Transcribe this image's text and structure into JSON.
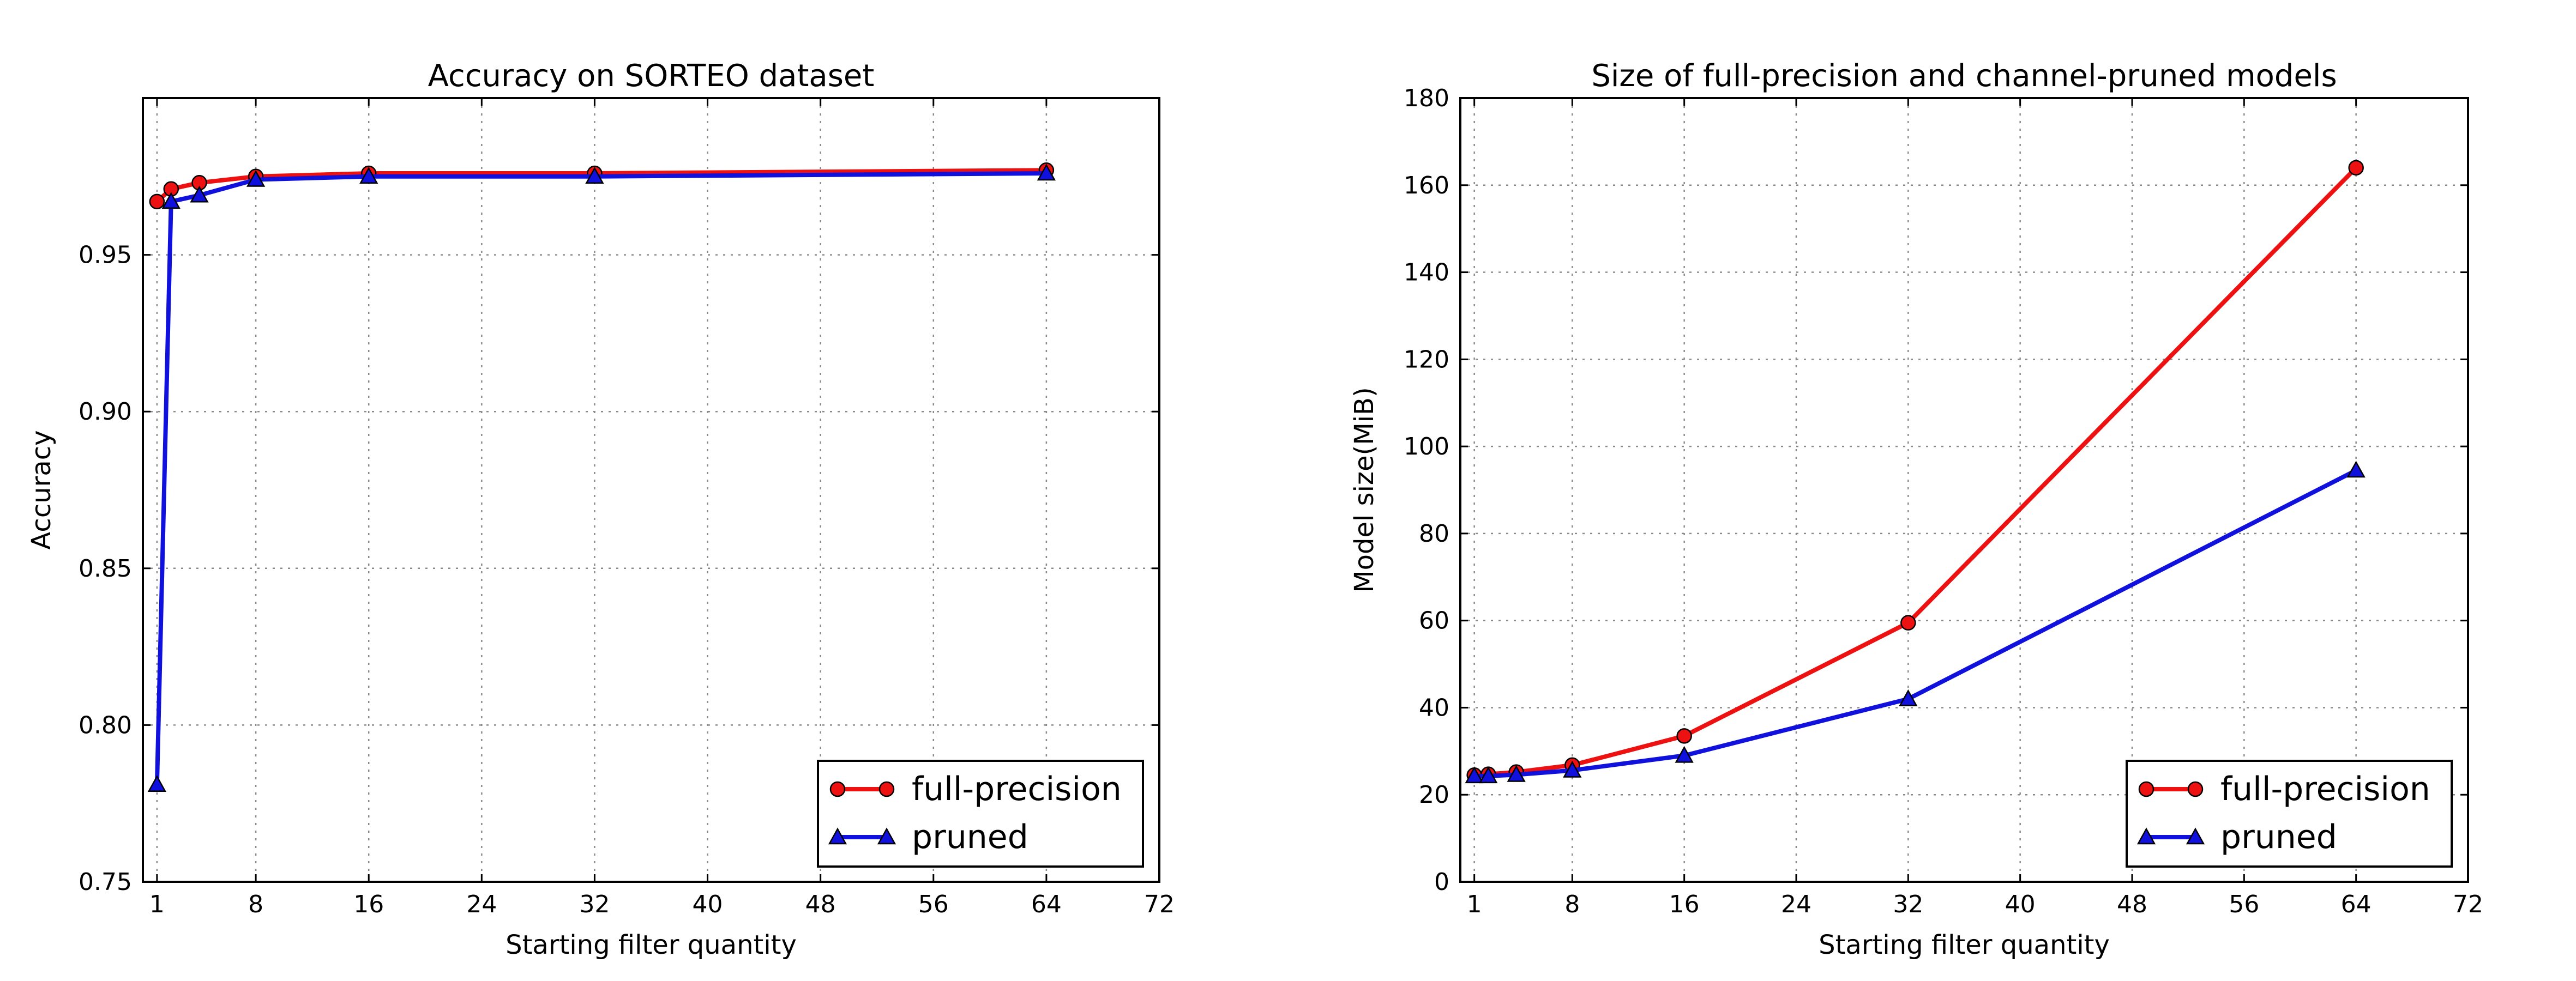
{
  "colors": {
    "full_precision": "#ee1111",
    "pruned": "#1111dd"
  },
  "chart_data": [
    {
      "type": "line",
      "title": "Accuracy on SORTEO dataset",
      "xlabel": "Starting filter quantity",
      "ylabel": "Accuracy",
      "xlim": [
        0,
        72
      ],
      "ylim": [
        0.75,
        1.0
      ],
      "xticks": [
        1,
        8,
        16,
        24,
        32,
        40,
        48,
        56,
        64,
        72
      ],
      "yticks": [
        0.75,
        0.8,
        0.85,
        0.9,
        0.95
      ],
      "ytick_labels": [
        "0.75",
        "0.80",
        "0.85",
        "0.90",
        "0.95"
      ],
      "grid": true,
      "legend_position": "bottom-right",
      "series": [
        {
          "name": "full-precision",
          "marker": "circle",
          "color": "#ee1111",
          "x": [
            1,
            2,
            4,
            8,
            16,
            32,
            64
          ],
          "y": [
            0.967,
            0.971,
            0.973,
            0.975,
            0.976,
            0.976,
            0.977
          ]
        },
        {
          "name": "pruned",
          "marker": "triangle",
          "color": "#1111dd",
          "x": [
            1,
            2,
            4,
            8,
            16,
            32,
            64
          ],
          "y": [
            0.781,
            0.967,
            0.969,
            0.974,
            0.975,
            0.975,
            0.976
          ]
        }
      ]
    },
    {
      "type": "line",
      "title": "Size of full-precision and channel-pruned models",
      "xlabel": "Starting filter quantity",
      "ylabel": "Model size(MiB)",
      "xlim": [
        0,
        72
      ],
      "ylim": [
        0,
        180
      ],
      "xticks": [
        1,
        8,
        16,
        24,
        32,
        40,
        48,
        56,
        64,
        72
      ],
      "yticks": [
        0,
        20,
        40,
        60,
        80,
        100,
        120,
        140,
        160,
        180
      ],
      "ytick_labels": [
        "0",
        "20",
        "40",
        "60",
        "80",
        "100",
        "120",
        "140",
        "160",
        "180"
      ],
      "grid": true,
      "legend_position": "bottom-right",
      "series": [
        {
          "name": "full-precision",
          "marker": "circle",
          "color": "#ee1111",
          "x": [
            1,
            2,
            4,
            8,
            16,
            32,
            64
          ],
          "y": [
            24.5,
            24.7,
            25.2,
            26.8,
            33.5,
            59.5,
            164
          ]
        },
        {
          "name": "pruned",
          "marker": "triangle",
          "color": "#1111dd",
          "x": [
            1,
            2,
            4,
            8,
            16,
            32,
            64
          ],
          "y": [
            24.3,
            24.3,
            24.6,
            25.6,
            29.0,
            42.0,
            94.5
          ]
        }
      ]
    }
  ]
}
